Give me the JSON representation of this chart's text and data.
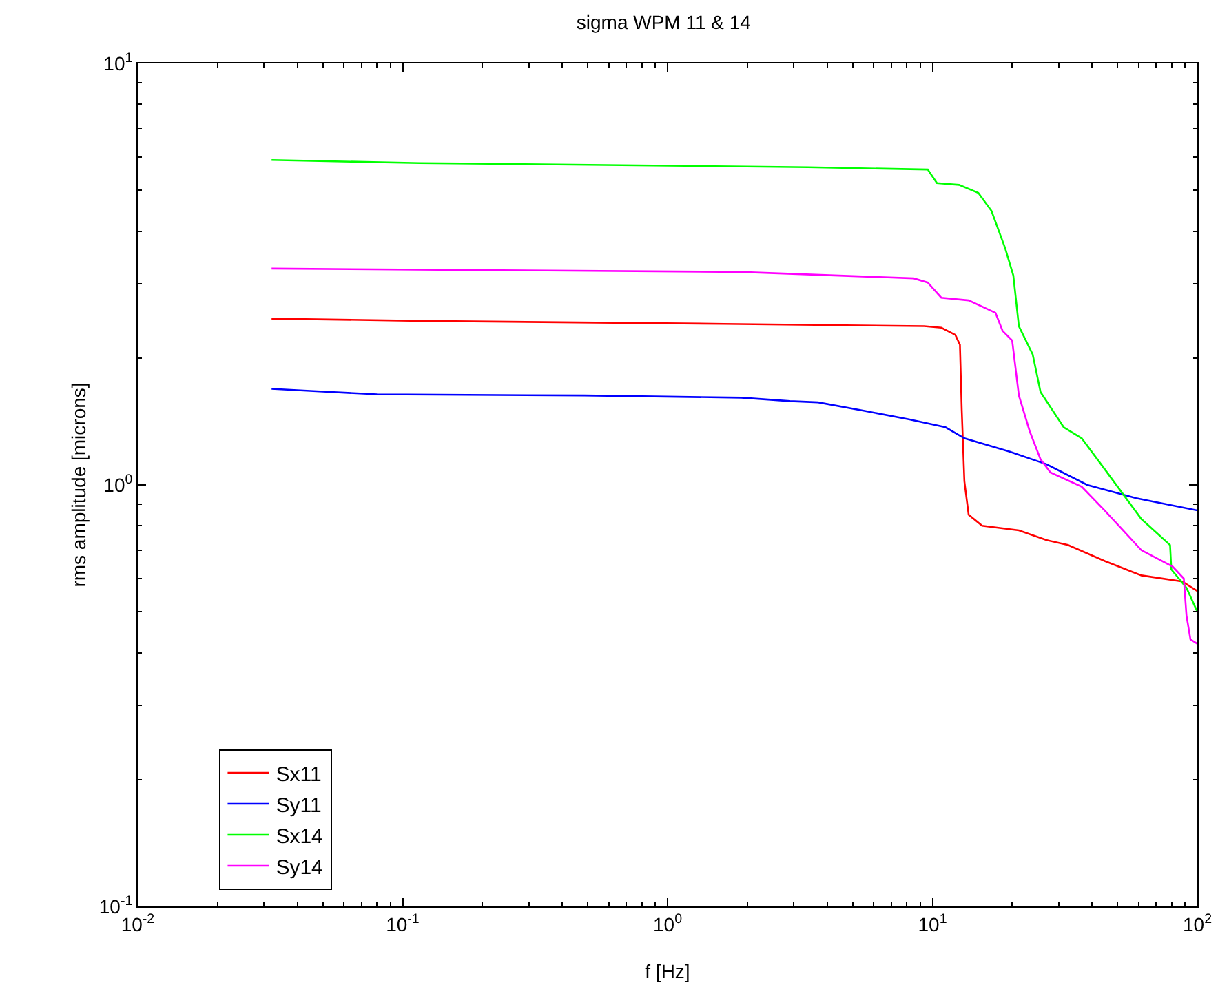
{
  "chart_data": {
    "type": "line",
    "title": "sigma WPM 11 & 14",
    "xlabel": "f [Hz]",
    "ylabel": "rms amplitude [microns]",
    "log": "xy",
    "grid": false,
    "legend": "bottom left",
    "marker": "none",
    "line_style": "solid",
    "xlim": [
      0.01,
      100
    ],
    "ylim": [
      0.1,
      10
    ],
    "xticks": [
      {
        "value": 0.01,
        "label": "10$^{-2}$"
      },
      {
        "value": 0.1,
        "label": "10$^{-1}$"
      },
      {
        "value": 1,
        "label": "10$^{0}$"
      },
      {
        "value": 10,
        "label": "10$^{1}$"
      },
      {
        "value": 100,
        "label": "10$^{2}$"
      }
    ],
    "yticks": [
      {
        "value": 0.1,
        "label": "10$^{-1}$"
      },
      {
        "value": 1,
        "label": "10$^{0}$"
      },
      {
        "value": 10,
        "label": "10$^{1}$"
      }
    ],
    "series": [
      {
        "name": "Sx11",
        "color": "#ff0000",
        "x": [
          0.032,
          0.116,
          1.63,
          9.3,
          10.8,
          12.2,
          12.7,
          12.9,
          13.2,
          13.7,
          15.4,
          21.2,
          26.9,
          32.5,
          44.7,
          61.5,
          87.7,
          100
        ],
        "values": [
          2.48,
          2.45,
          2.41,
          2.38,
          2.36,
          2.27,
          2.15,
          1.51,
          1.02,
          0.85,
          0.8,
          0.78,
          0.74,
          0.72,
          0.66,
          0.61,
          0.59,
          0.56
        ]
      },
      {
        "name": "Sy11",
        "color": "#0000ff",
        "x": [
          0.032,
          0.046,
          0.08,
          0.485,
          1.9,
          2.9,
          3.7,
          5.5,
          8.2,
          11.2,
          13.2,
          19.5,
          26.9,
          38.4,
          58.8,
          100
        ],
        "values": [
          1.69,
          1.67,
          1.64,
          1.63,
          1.61,
          1.58,
          1.57,
          1.5,
          1.43,
          1.37,
          1.29,
          1.2,
          1.12,
          1.0,
          0.93,
          0.87
        ]
      },
      {
        "name": "Sx14",
        "color": "#00ff00",
        "x": [
          0.032,
          0.116,
          0.285,
          3.4,
          9.6,
          10.4,
          12.6,
          14.9,
          16.7,
          18.8,
          20.2,
          21.2,
          23.9,
          25.6,
          31.3,
          36.6,
          44.7,
          61.5,
          78.9,
          79.8,
          91,
          100
        ],
        "values": [
          5.9,
          5.8,
          5.77,
          5.67,
          5.6,
          5.2,
          5.15,
          4.93,
          4.47,
          3.65,
          3.14,
          2.38,
          2.04,
          1.66,
          1.37,
          1.29,
          1.09,
          0.83,
          0.72,
          0.63,
          0.57,
          0.5
        ]
      },
      {
        "name": "Sy14",
        "color": "#ff00ff",
        "x": [
          0.032,
          1.9,
          8.5,
          9.6,
          10.8,
          13.7,
          17.3,
          18.4,
          20,
          21.2,
          23.3,
          25.6,
          27.9,
          36.6,
          44.7,
          61.5,
          80.7,
          88.9,
          91,
          94.2,
          100
        ],
        "values": [
          3.26,
          3.2,
          3.09,
          3.02,
          2.78,
          2.74,
          2.56,
          2.32,
          2.2,
          1.63,
          1.34,
          1.15,
          1.07,
          0.99,
          0.87,
          0.7,
          0.64,
          0.6,
          0.49,
          0.43,
          0.42
        ]
      }
    ]
  }
}
